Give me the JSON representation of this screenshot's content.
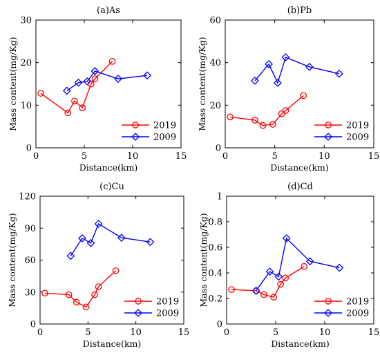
{
  "figure": {
    "colors": {
      "series_2019": "#ff0000",
      "series_2009": "#0000ff",
      "axis": "#000000",
      "background": "#ffffff"
    }
  },
  "chart_data": [
    {
      "type": "line",
      "title": "(a)As",
      "xlabel": "Distance(km)",
      "ylabel": "Mass content(mg/Kg)",
      "xlim": [
        0,
        15
      ],
      "ylim": [
        0,
        30
      ],
      "xticks": [
        0,
        5,
        10,
        15
      ],
      "yticks": [
        0,
        10,
        20,
        30
      ],
      "xtick_labels": [
        "0",
        "5",
        "10",
        "15"
      ],
      "ytick_labels": [
        "0",
        "10",
        "20",
        "30"
      ],
      "grid": false,
      "legend_position": "bottom-right",
      "series": [
        {
          "name": "2019",
          "color": "#ff0000",
          "marker": "circle",
          "x": [
            0.5,
            3.3,
            4.0,
            4.8,
            5.7,
            6.1,
            7.9
          ],
          "y": [
            12.8,
            8.2,
            11.0,
            9.4,
            15.0,
            16.2,
            20.3
          ]
        },
        {
          "name": "2009",
          "color": "#0000ff",
          "marker": "diamond",
          "x": [
            3.2,
            4.4,
            5.3,
            6.1,
            8.5,
            11.5
          ],
          "y": [
            13.4,
            15.3,
            15.6,
            18.0,
            16.2,
            17.0
          ]
        }
      ]
    },
    {
      "type": "line",
      "title": "(b)Pb",
      "xlabel": "Distance(km)",
      "ylabel": "Mass content(mg/Kg)",
      "xlim": [
        0,
        15
      ],
      "ylim": [
        0,
        60
      ],
      "xticks": [
        0,
        5,
        10,
        15
      ],
      "yticks": [
        0,
        20,
        40,
        60
      ],
      "xtick_labels": [
        "0",
        "5",
        "10",
        "15"
      ],
      "ytick_labels": [
        "0",
        "20",
        "40",
        "60"
      ],
      "grid": false,
      "legend_position": "bottom-right",
      "series": [
        {
          "name": "2019",
          "color": "#ff0000",
          "marker": "circle",
          "x": [
            0.5,
            3.0,
            3.8,
            4.8,
            5.7,
            6.1,
            7.9
          ],
          "y": [
            14.5,
            13.0,
            10.5,
            11.0,
            16.0,
            17.5,
            24.5
          ]
        },
        {
          "name": "2009",
          "color": "#0000ff",
          "marker": "diamond",
          "x": [
            3.0,
            4.4,
            5.3,
            6.1,
            8.5,
            11.5
          ],
          "y": [
            31.5,
            39.3,
            30.5,
            42.5,
            38.0,
            34.8
          ]
        }
      ]
    },
    {
      "type": "line",
      "title": "(c)Cu",
      "xlabel": "Distance(km)",
      "ylabel": "Mass content(mg/Kg)",
      "xlim": [
        0,
        15
      ],
      "ylim": [
        0,
        120
      ],
      "xticks": [
        0,
        5,
        10,
        15
      ],
      "yticks": [
        0,
        30,
        60,
        90,
        120
      ],
      "xtick_labels": [
        "0",
        "5",
        "10",
        "15"
      ],
      "ytick_labels": [
        "0",
        "30",
        "60",
        "90",
        "120"
      ],
      "grid": false,
      "legend_position": "bottom-right",
      "series": [
        {
          "name": "2019",
          "color": "#ff0000",
          "marker": "circle",
          "x": [
            0.5,
            3.0,
            3.8,
            4.8,
            5.7,
            6.1,
            7.9
          ],
          "y": [
            29.0,
            27.5,
            20.5,
            16.0,
            27.5,
            35.0,
            50.0
          ]
        },
        {
          "name": "2009",
          "color": "#0000ff",
          "marker": "diamond",
          "x": [
            3.2,
            4.4,
            5.3,
            6.1,
            8.5,
            11.5
          ],
          "y": [
            64.0,
            80.5,
            76.0,
            94.0,
            81.0,
            77.0
          ]
        }
      ]
    },
    {
      "type": "line",
      "title": "(d)Cd",
      "xlabel": "Distance(km)",
      "ylabel": "Mass content(mg/Kg)",
      "xlim": [
        0,
        15
      ],
      "ylim": [
        0,
        1
      ],
      "xticks": [
        0,
        5,
        10,
        15
      ],
      "yticks": [
        0,
        0.2,
        0.4,
        0.6,
        0.8,
        1
      ],
      "xtick_labels": [
        "0",
        "5",
        "10",
        "15"
      ],
      "ytick_labels": [
        "0",
        "0.2",
        "0.4",
        "0.6",
        "0.8",
        "1"
      ],
      "grid": false,
      "legend_position": "bottom-right",
      "series": [
        {
          "name": "2019",
          "color": "#ff0000",
          "marker": "circle",
          "x": [
            0.5,
            3.0,
            3.8,
            4.8,
            5.5,
            6.0,
            7.9
          ],
          "y": [
            0.27,
            0.26,
            0.23,
            0.21,
            0.31,
            0.36,
            0.45
          ]
        },
        {
          "name": "2009",
          "color": "#0000ff",
          "marker": "diamond",
          "x": [
            3.0,
            4.4,
            5.3,
            6.1,
            8.5,
            11.5
          ],
          "y": [
            0.26,
            0.41,
            0.37,
            0.67,
            0.49,
            0.44
          ]
        }
      ]
    }
  ]
}
